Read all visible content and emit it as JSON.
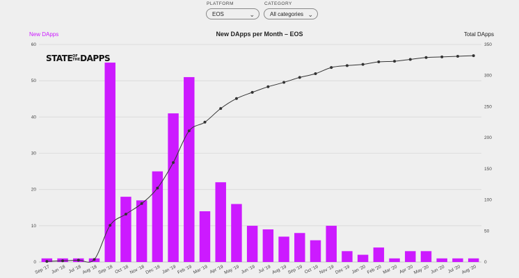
{
  "filters": {
    "platform": {
      "label": "PLATFORM",
      "value": "EOS"
    },
    "category": {
      "label": "CATEGORY",
      "value": "All categories"
    }
  },
  "logo": {
    "part1": "STATE",
    "small1": "OF",
    "small2": "THE",
    "part2": "DAPPS"
  },
  "colors": {
    "bar": "#cc1aff",
    "line": "#333333",
    "grid": "#d8d8d8"
  },
  "chart_data": {
    "type": "bar",
    "title": "New DApps per Month – EOS",
    "ylabel": "New DApps",
    "y2label": "Total DApps",
    "ylim": [
      0,
      60
    ],
    "y2lim": [
      0,
      350
    ],
    "yticks": [
      0,
      10,
      20,
      30,
      40,
      50,
      60
    ],
    "y2ticks": [
      0,
      50,
      100,
      150,
      200,
      250,
      300,
      350
    ],
    "categories": [
      "Sep '17",
      "Jun '18",
      "Jul '18",
      "Aug '18",
      "Sep '18",
      "Oct '18",
      "Nov '18",
      "Dec '18",
      "Jan '19",
      "Feb '19",
      "Mar '19",
      "Apr '19",
      "May '19",
      "Jun '19",
      "Jul '19",
      "Aug '19",
      "Sep '19",
      "Oct '19",
      "Nov '19",
      "Dec '19",
      "Jan '20",
      "Feb '20",
      "Mar '20",
      "Apr '20",
      "May '20",
      "Jun '20",
      "Jul '20",
      "Aug '20"
    ],
    "series": [
      {
        "name": "New DApps",
        "type": "bar",
        "values": [
          1,
          1,
          1,
          1,
          55,
          18,
          17,
          25,
          41,
          51,
          14,
          22,
          16,
          10,
          9,
          7,
          8,
          6,
          10,
          3,
          2,
          4,
          1,
          3,
          3,
          1,
          1,
          1
        ]
      },
      {
        "name": "Total DApps",
        "type": "line",
        "values": [
          1,
          2,
          3,
          4,
          59,
          77,
          94,
          119,
          160,
          211,
          225,
          247,
          263,
          273,
          282,
          289,
          297,
          303,
          313,
          316,
          318,
          322,
          323,
          326,
          329,
          330,
          331,
          332
        ]
      }
    ],
    "grid": true
  }
}
